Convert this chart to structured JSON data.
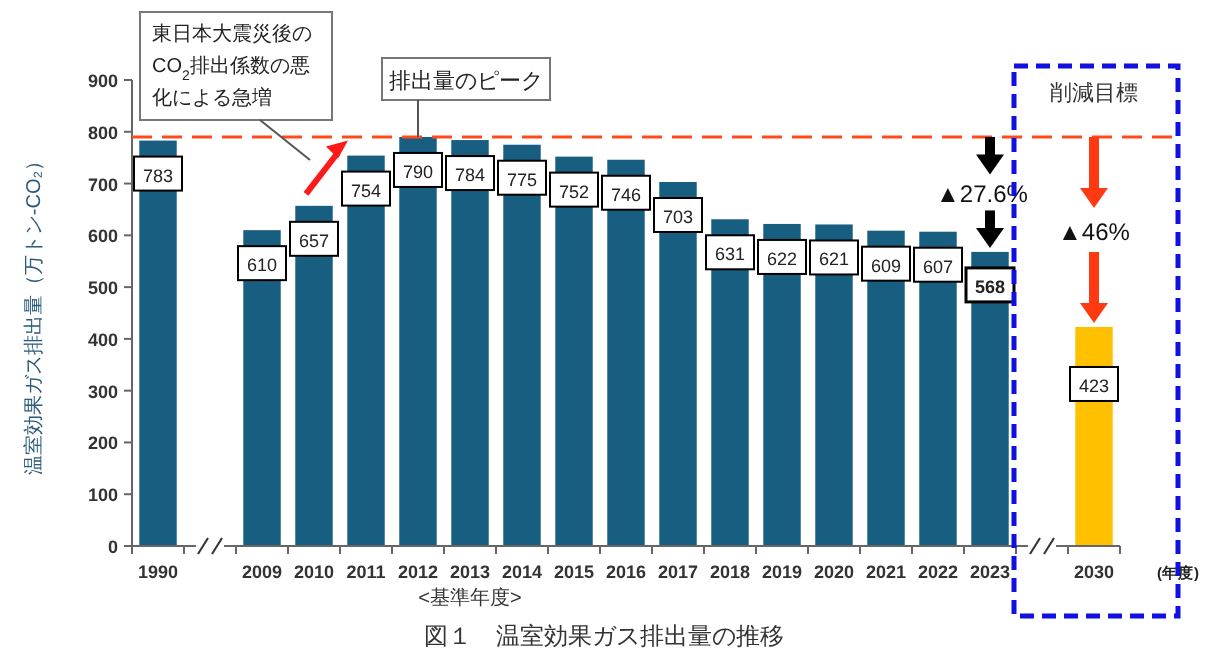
{
  "chart_data": {
    "type": "bar",
    "title": "図１　温室効果ガス排出量の推移",
    "ylabel": "温室効果ガス排出量（万トン-CO₂）",
    "xlabel": "(年度)",
    "categories": [
      "1990",
      null,
      "2009",
      "2010",
      "2011",
      "2012",
      "2013",
      "2014",
      "2015",
      "2016",
      "2017",
      "2018",
      "2019",
      "2020",
      "2021",
      "2022",
      "2023",
      null,
      "2030"
    ],
    "values": [
      783,
      null,
      610,
      657,
      754,
      790,
      784,
      775,
      752,
      746,
      703,
      631,
      622,
      621,
      609,
      607,
      568,
      null,
      423
    ],
    "colors": [
      "#175e80",
      null,
      "#175e80",
      "#175e80",
      "#175e80",
      "#175e80",
      "#175e80",
      "#175e80",
      "#175e80",
      "#175e80",
      "#175e80",
      "#175e80",
      "#175e80",
      "#175e80",
      "#175e80",
      "#175e80",
      "#175e80",
      null,
      "#ffc000"
    ],
    "data_labels": true,
    "ylim": [
      0,
      900
    ],
    "yticks": [
      0,
      100,
      200,
      300,
      400,
      500,
      600,
      700,
      800,
      900
    ],
    "grid": false,
    "ref_lines": [
      {
        "axis": "y",
        "value": 790,
        "color": "#ff4a1c",
        "line_style": "dashed"
      }
    ],
    "annotations": [
      "東日本大震災後のCO$_{2}$排出係数の悪化による急増",
      {
        "text": "排出量のピーク",
        "x": "2012",
        "y": 790
      },
      "▲27.6%",
      "削減目標",
      "▲46%",
      "<基準年度>"
    ]
  }
}
